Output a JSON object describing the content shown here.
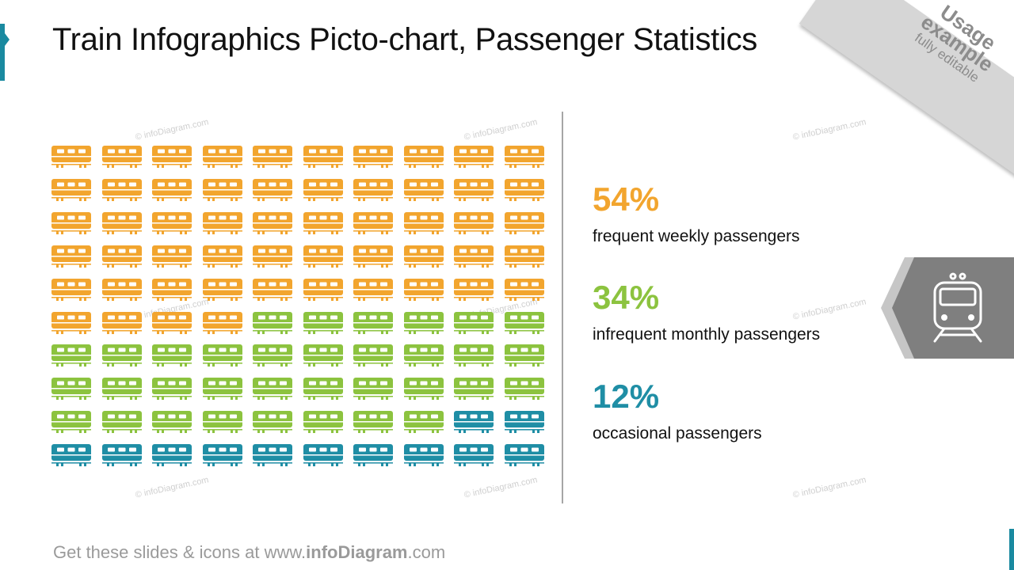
{
  "title": "Train Infographics Picto-chart, Passenger Statistics",
  "corner": {
    "line1": "Usage",
    "line2": "example",
    "line3": "fully editable"
  },
  "watermark": "© infoDiagram.com",
  "footer": {
    "prefix": "Get these slides & icons at www.",
    "brand": "infoDiagram",
    "suffix": ".com"
  },
  "colors": {
    "weekly": "#f2a52e",
    "monthly": "#8cc33f",
    "occasional": "#1f8ea5",
    "tag": "#7f7f7f",
    "accent": "#1a8aa0"
  },
  "stats": [
    {
      "pct": "54%",
      "label": "frequent weekly passengers",
      "color": "#f2a52e"
    },
    {
      "pct": "34%",
      "label": "infrequent monthly passengers",
      "color": "#8cc33f"
    },
    {
      "pct": "12%",
      "label": "occasional passengers",
      "color": "#1f8ea5"
    }
  ],
  "tag_icon": "train-front-icon",
  "chart_data": {
    "type": "pictogram",
    "icon": "train-car-icon",
    "grid": {
      "rows": 10,
      "columns": 10
    },
    "series": [
      {
        "name": "frequent weekly passengers",
        "value": 54,
        "color": "#f2a52e"
      },
      {
        "name": "infrequent monthly passengers",
        "value": 34,
        "color": "#8cc33f"
      },
      {
        "name": "occasional passengers",
        "value": 12,
        "color": "#1f8ea5"
      }
    ]
  }
}
